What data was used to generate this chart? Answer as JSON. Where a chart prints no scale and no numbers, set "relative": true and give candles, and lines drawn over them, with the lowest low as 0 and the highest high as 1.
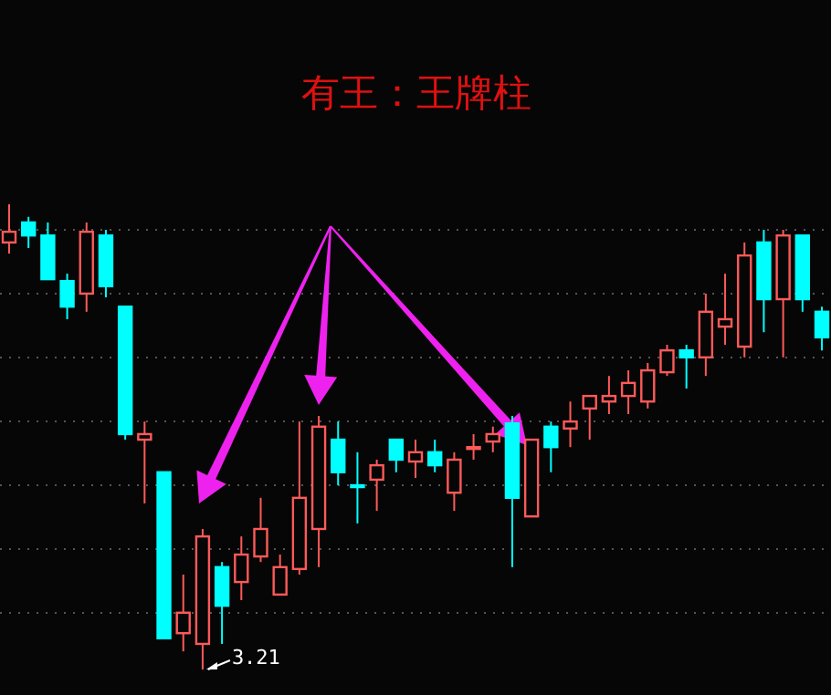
{
  "chart_data": {
    "type": "candlestick",
    "title": "有王：王牌柱",
    "relative": true,
    "grid": "y",
    "categories": [
      null,
      null,
      null,
      null,
      null,
      null,
      null,
      null,
      null,
      null,
      null,
      null,
      null,
      null,
      null,
      null,
      null,
      null,
      null,
      null,
      null,
      null,
      null,
      null,
      null,
      null,
      null,
      null,
      null,
      null,
      null,
      null,
      null,
      null,
      null,
      null,
      null,
      null,
      null,
      null,
      null,
      null,
      null
    ],
    "ohlc": [
      [
        0.918,
        1.0,
        0.894,
        0.941
      ],
      [
        0.961,
        0.973,
        0.906,
        0.933
      ],
      [
        0.933,
        0.961,
        0.839,
        0.839
      ],
      [
        0.835,
        0.851,
        0.753,
        0.78
      ],
      [
        0.808,
        0.961,
        0.769,
        0.941
      ],
      [
        0.933,
        0.945,
        0.8,
        0.824
      ],
      [
        0.78,
        0.78,
        0.494,
        0.506
      ],
      [
        0.494,
        0.533,
        0.357,
        0.506
      ],
      [
        0.424,
        0.424,
        0.067,
        0.067
      ],
      [
        0.078,
        0.204,
        0.039,
        0.122
      ],
      [
        0.055,
        0.302,
        0.0,
        0.286
      ],
      [
        0.22,
        0.231,
        0.055,
        0.137
      ],
      [
        0.188,
        0.286,
        0.149,
        0.247
      ],
      [
        0.243,
        0.369,
        0.231,
        0.302
      ],
      [
        0.161,
        0.247,
        0.161,
        0.22
      ],
      [
        0.216,
        0.533,
        0.204,
        0.369
      ],
      [
        0.302,
        0.545,
        0.22,
        0.522
      ],
      [
        0.494,
        0.533,
        0.396,
        0.424
      ],
      [
        0.396,
        0.467,
        0.314,
        0.396
      ],
      [
        0.408,
        0.451,
        0.341,
        0.439
      ],
      [
        0.494,
        0.494,
        0.424,
        0.451
      ],
      [
        0.447,
        0.494,
        0.412,
        0.467
      ],
      [
        0.467,
        0.494,
        0.424,
        0.439
      ],
      [
        0.38,
        0.467,
        0.341,
        0.451
      ],
      [
        0.478,
        0.506,
        0.451,
        0.478
      ],
      [
        0.49,
        0.522,
        0.467,
        0.506
      ],
      [
        0.529,
        0.545,
        0.22,
        0.369
      ],
      [
        0.329,
        0.494,
        0.329,
        0.494
      ],
      [
        0.522,
        0.533,
        0.424,
        0.478
      ],
      [
        0.518,
        0.576,
        0.478,
        0.533
      ],
      [
        0.561,
        0.588,
        0.494,
        0.588
      ],
      [
        0.576,
        0.631,
        0.549,
        0.588
      ],
      [
        0.588,
        0.643,
        0.549,
        0.616
      ],
      [
        0.576,
        0.659,
        0.561,
        0.643
      ],
      [
        0.639,
        0.698,
        0.631,
        0.686
      ],
      [
        0.686,
        0.698,
        0.604,
        0.671
      ],
      [
        0.671,
        0.808,
        0.631,
        0.769
      ],
      [
        0.737,
        0.851,
        0.698,
        0.753
      ],
      [
        0.694,
        0.918,
        0.671,
        0.89
      ],
      [
        0.918,
        0.945,
        0.725,
        0.796
      ],
      [
        0.796,
        0.945,
        0.671,
        0.933
      ],
      [
        0.933,
        0.933,
        0.769,
        0.796
      ],
      [
        0.769,
        0.78,
        0.686,
        0.714
      ]
    ],
    "annotations": [
      "3.21"
    ]
  }
}
